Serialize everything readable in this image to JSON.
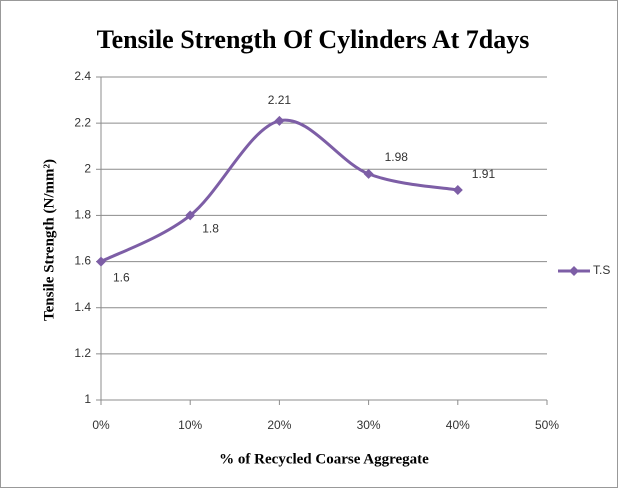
{
  "chart_data": {
    "type": "line",
    "title": "Tensile Strength Of Cylinders At 7days",
    "x_label": "% of Recycled Coarse Aggregate",
    "y_label": "Tensile  Strength (N/mm²)",
    "x": [
      0,
      10,
      20,
      30,
      40
    ],
    "series": [
      {
        "name": "T.S",
        "color": "#7d5ea6",
        "values": [
          1.6,
          1.8,
          2.21,
          1.98,
          1.91
        ]
      }
    ],
    "xlim": [
      0,
      50
    ],
    "xticks": [
      {
        "value": 0,
        "label": "0%"
      },
      {
        "value": 10,
        "label": "10%"
      },
      {
        "value": 20,
        "label": "20%"
      },
      {
        "value": 30,
        "label": "30%"
      },
      {
        "value": 40,
        "label": "40%"
      },
      {
        "value": 50,
        "label": "50%"
      }
    ],
    "ylim": [
      1,
      2.4
    ],
    "yticks": [
      1,
      1.2,
      1.4,
      1.6,
      1.8,
      2,
      2.2,
      2.4
    ],
    "grid": true,
    "smooth": true,
    "legend": "right"
  }
}
